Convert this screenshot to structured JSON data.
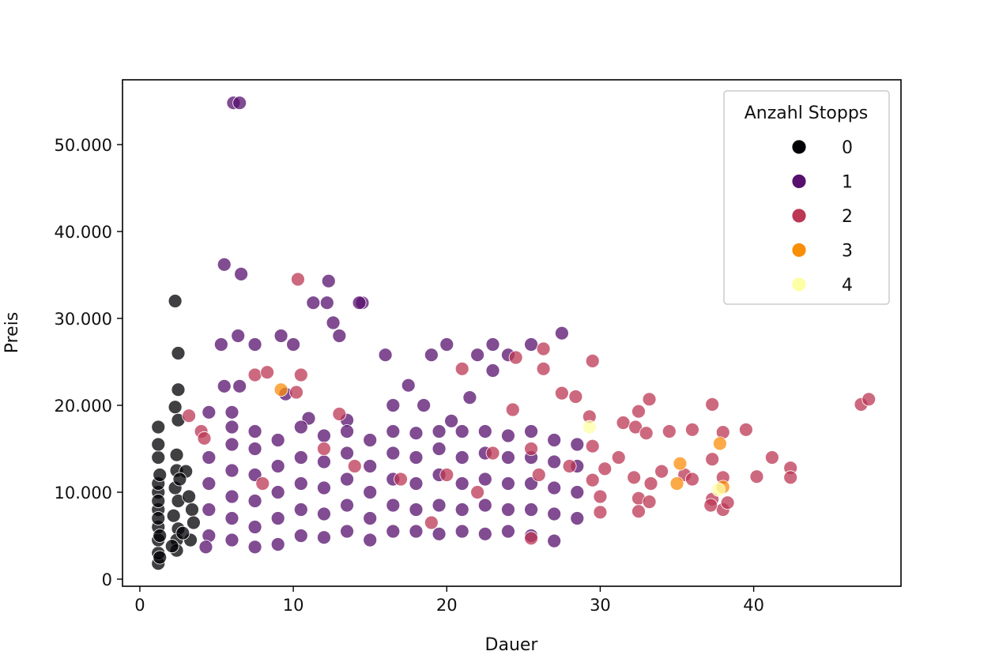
{
  "chart_data": {
    "type": "scatter",
    "title": "",
    "xlabel": "Dauer",
    "ylabel": "Preis",
    "xlim": [
      -1.13,
      49.6
    ],
    "ylim": [
      -818,
      57454
    ],
    "xticks": [
      {
        "value": 0,
        "label": "0"
      },
      {
        "value": 10,
        "label": "10"
      },
      {
        "value": 20,
        "label": "20"
      },
      {
        "value": 30,
        "label": "30"
      },
      {
        "value": 40,
        "label": "40"
      }
    ],
    "yticks": [
      {
        "value": 0,
        "label": "0"
      },
      {
        "value": 10000,
        "label": "10.000"
      },
      {
        "value": 20000,
        "label": "20.000"
      },
      {
        "value": 30000,
        "label": "30.000"
      },
      {
        "value": 40000,
        "label": "40.000"
      },
      {
        "value": 50000,
        "label": "50.000"
      }
    ],
    "grid": false,
    "legend": {
      "title": "Anzahl Stopps",
      "placement": "top-right",
      "entries": [
        {
          "label": "0",
          "color": "#000004"
        },
        {
          "label": "1",
          "color": "#57106e"
        },
        {
          "label": "2",
          "color": "#bc3754"
        },
        {
          "label": "3",
          "color": "#f98e09"
        },
        {
          "label": "4",
          "color": "#fcffa4"
        }
      ]
    },
    "point_format": [
      "Dauer",
      "Preis",
      "Anzahl Stopps"
    ],
    "points": [
      [
        1.2,
        1800,
        0
      ],
      [
        1.2,
        3000,
        0
      ],
      [
        1.2,
        4500,
        0
      ],
      [
        1.2,
        6000,
        0
      ],
      [
        1.2,
        8000,
        0
      ],
      [
        1.2,
        10000,
        0
      ],
      [
        1.2,
        11000,
        0
      ],
      [
        1.2,
        14000,
        0
      ],
      [
        1.2,
        15500,
        0
      ],
      [
        1.2,
        17500,
        0
      ],
      [
        1.3,
        12000,
        0
      ],
      [
        1.3,
        5000,
        0
      ],
      [
        1.3,
        2500,
        0
      ],
      [
        1.2,
        7000,
        0
      ],
      [
        1.2,
        9000,
        0
      ],
      [
        2.3,
        32000,
        0
      ],
      [
        2.5,
        26000,
        0
      ],
      [
        2.5,
        21800,
        0
      ],
      [
        2.3,
        19800,
        0
      ],
      [
        2.5,
        18300,
        0
      ],
      [
        2.4,
        14300,
        0
      ],
      [
        2.4,
        12500,
        0
      ],
      [
        2.3,
        10500,
        0
      ],
      [
        2.5,
        9000,
        0
      ],
      [
        2.2,
        7300,
        0
      ],
      [
        2.5,
        5800,
        0
      ],
      [
        2.4,
        4500,
        0
      ],
      [
        2.4,
        3300,
        0
      ],
      [
        3.2,
        9500,
        0
      ],
      [
        3.4,
        8000,
        0
      ],
      [
        3.5,
        6500,
        0
      ],
      [
        3.3,
        4500,
        0
      ],
      [
        2.8,
        5300,
        0
      ],
      [
        3.0,
        12400,
        0
      ],
      [
        2.1,
        3800,
        0
      ],
      [
        2.6,
        11500,
        0
      ],
      [
        6.1,
        54800,
        1
      ],
      [
        6.5,
        54800,
        1
      ],
      [
        5.5,
        36200,
        1
      ],
      [
        6.6,
        35100,
        1
      ],
      [
        12.3,
        34300,
        1
      ],
      [
        12.6,
        29500,
        1
      ],
      [
        14.5,
        31800,
        1
      ],
      [
        11.3,
        31800,
        1
      ],
      [
        12.2,
        31800,
        1
      ],
      [
        14.3,
        31800,
        1
      ],
      [
        6.4,
        28000,
        1
      ],
      [
        9.2,
        28000,
        1
      ],
      [
        13,
        28000,
        1
      ],
      [
        27.5,
        28300,
        1
      ],
      [
        5.3,
        27000,
        1
      ],
      [
        7.5,
        27000,
        1
      ],
      [
        10,
        27000,
        1
      ],
      [
        20,
        27000,
        1
      ],
      [
        23,
        27000,
        1
      ],
      [
        22,
        25800,
        1
      ],
      [
        16,
        25800,
        1
      ],
      [
        19,
        25800,
        1
      ],
      [
        24,
        25800,
        1
      ],
      [
        25.5,
        27000,
        1
      ],
      [
        9.5,
        21300,
        1
      ],
      [
        5.5,
        22200,
        1
      ],
      [
        6.5,
        22200,
        1
      ],
      [
        17.5,
        22300,
        1
      ],
      [
        21.5,
        20900,
        1
      ],
      [
        23,
        24000,
        1
      ],
      [
        16.5,
        20000,
        1
      ],
      [
        18.5,
        20000,
        1
      ],
      [
        4.5,
        19200,
        1
      ],
      [
        6,
        19200,
        1
      ],
      [
        11,
        18500,
        1
      ],
      [
        13.5,
        18300,
        1
      ],
      [
        20.3,
        18200,
        1
      ],
      [
        4.5,
        5000,
        1
      ],
      [
        4.5,
        8000,
        1
      ],
      [
        4.5,
        11000,
        1
      ],
      [
        4.5,
        14000,
        1
      ],
      [
        4.3,
        3700,
        1
      ],
      [
        6,
        4500,
        1
      ],
      [
        6,
        7000,
        1
      ],
      [
        6,
        9500,
        1
      ],
      [
        6,
        12500,
        1
      ],
      [
        6,
        15500,
        1
      ],
      [
        6,
        17500,
        1
      ],
      [
        7.5,
        3700,
        1
      ],
      [
        7.5,
        6000,
        1
      ],
      [
        7.5,
        9000,
        1
      ],
      [
        7.5,
        12000,
        1
      ],
      [
        7.5,
        15000,
        1
      ],
      [
        7.5,
        17000,
        1
      ],
      [
        9,
        4000,
        1
      ],
      [
        9,
        7000,
        1
      ],
      [
        9,
        10000,
        1
      ],
      [
        9,
        13000,
        1
      ],
      [
        9,
        16000,
        1
      ],
      [
        10.5,
        5000,
        1
      ],
      [
        10.5,
        8000,
        1
      ],
      [
        10.5,
        11000,
        1
      ],
      [
        10.5,
        14000,
        1
      ],
      [
        10.5,
        17500,
        1
      ],
      [
        12,
        4800,
        1
      ],
      [
        12,
        7500,
        1
      ],
      [
        12,
        10500,
        1
      ],
      [
        12,
        13500,
        1
      ],
      [
        12,
        16500,
        1
      ],
      [
        13.5,
        5500,
        1
      ],
      [
        13.5,
        8500,
        1
      ],
      [
        13.5,
        11500,
        1
      ],
      [
        13.5,
        14500,
        1
      ],
      [
        13.5,
        17000,
        1
      ],
      [
        15,
        4500,
        1
      ],
      [
        15,
        7000,
        1
      ],
      [
        15,
        10000,
        1
      ],
      [
        15,
        13000,
        1
      ],
      [
        15,
        16000,
        1
      ],
      [
        16.5,
        5500,
        1
      ],
      [
        16.5,
        8500,
        1
      ],
      [
        16.5,
        11500,
        1
      ],
      [
        16.5,
        14500,
        1
      ],
      [
        16.5,
        17000,
        1
      ],
      [
        18,
        5500,
        1
      ],
      [
        18,
        8000,
        1
      ],
      [
        18,
        11000,
        1
      ],
      [
        18,
        14000,
        1
      ],
      [
        18,
        16800,
        1
      ],
      [
        19.5,
        5200,
        1
      ],
      [
        19.5,
        8500,
        1
      ],
      [
        19.5,
        12000,
        1
      ],
      [
        19.5,
        15000,
        1
      ],
      [
        19.5,
        17000,
        1
      ],
      [
        21,
        5500,
        1
      ],
      [
        21,
        8000,
        1
      ],
      [
        21,
        11000,
        1
      ],
      [
        21,
        14000,
        1
      ],
      [
        21,
        17000,
        1
      ],
      [
        22.5,
        5200,
        1
      ],
      [
        22.5,
        8500,
        1
      ],
      [
        22.5,
        11500,
        1
      ],
      [
        22.5,
        14500,
        1
      ],
      [
        22.5,
        17000,
        1
      ],
      [
        24,
        5500,
        1
      ],
      [
        24,
        8000,
        1
      ],
      [
        24,
        11000,
        1
      ],
      [
        24,
        14000,
        1
      ],
      [
        24,
        16500,
        1
      ],
      [
        25.5,
        5000,
        1
      ],
      [
        25.5,
        8000,
        1
      ],
      [
        25.5,
        11000,
        1
      ],
      [
        25.5,
        14000,
        1
      ],
      [
        25.5,
        17000,
        1
      ],
      [
        27,
        4400,
        1
      ],
      [
        27,
        7500,
        1
      ],
      [
        27,
        10500,
        1
      ],
      [
        27,
        13500,
        1
      ],
      [
        27,
        16000,
        1
      ],
      [
        28.5,
        7000,
        1
      ],
      [
        28.5,
        10000,
        1
      ],
      [
        28.5,
        13000,
        1
      ],
      [
        28.5,
        15500,
        1
      ],
      [
        10.3,
        34500,
        2
      ],
      [
        10.5,
        23500,
        2
      ],
      [
        7.5,
        23500,
        2
      ],
      [
        8.3,
        23800,
        2
      ],
      [
        10.2,
        21500,
        2
      ],
      [
        24.5,
        25500,
        2
      ],
      [
        26.3,
        26500,
        2
      ],
      [
        26.3,
        24200,
        2
      ],
      [
        29.5,
        25100,
        2
      ],
      [
        27.5,
        21400,
        2
      ],
      [
        28.4,
        21000,
        2
      ],
      [
        21,
        24200,
        2
      ],
      [
        33.2,
        20700,
        2
      ],
      [
        37.3,
        20100,
        2
      ],
      [
        47,
        20100,
        2
      ],
      [
        47.5,
        20700,
        2
      ],
      [
        31.5,
        18000,
        2
      ],
      [
        32.3,
        17500,
        2
      ],
      [
        33,
        16800,
        2
      ],
      [
        34.5,
        17000,
        2
      ],
      [
        36,
        17200,
        2
      ],
      [
        39.5,
        17200,
        2
      ],
      [
        38,
        16900,
        2
      ],
      [
        32.5,
        19300,
        2
      ],
      [
        41.2,
        14000,
        2
      ],
      [
        37.3,
        13800,
        2
      ],
      [
        35.5,
        12000,
        2
      ],
      [
        36,
        11500,
        2
      ],
      [
        38,
        11700,
        2
      ],
      [
        40.2,
        11800,
        2
      ],
      [
        42.4,
        12800,
        2
      ],
      [
        42.4,
        11700,
        2
      ],
      [
        32.2,
        11700,
        2
      ],
      [
        33.3,
        11000,
        2
      ],
      [
        34,
        12400,
        2
      ],
      [
        37.3,
        9200,
        2
      ],
      [
        38,
        8000,
        2
      ],
      [
        38.3,
        8800,
        2
      ],
      [
        37.2,
        8500,
        2
      ],
      [
        32.5,
        9300,
        2
      ],
      [
        33.2,
        8900,
        2
      ],
      [
        32.5,
        7800,
        2
      ],
      [
        30,
        7700,
        2
      ],
      [
        30,
        9500,
        2
      ],
      [
        29.5,
        11400,
        2
      ],
      [
        30.3,
        12700,
        2
      ],
      [
        31.2,
        14000,
        2
      ],
      [
        29.5,
        15300,
        2
      ],
      [
        29.3,
        18700,
        2
      ],
      [
        24.3,
        19500,
        2
      ],
      [
        25.5,
        15000,
        2
      ],
      [
        23,
        14500,
        2
      ],
      [
        20,
        12000,
        2
      ],
      [
        17,
        11500,
        2
      ],
      [
        14,
        13000,
        2
      ],
      [
        12,
        15000,
        2
      ],
      [
        8,
        11000,
        2
      ],
      [
        19,
        6500,
        2
      ],
      [
        22,
        10000,
        2
      ],
      [
        26,
        12000,
        2
      ],
      [
        28,
        13000,
        2
      ],
      [
        4,
        17000,
        2
      ],
      [
        4.2,
        16200,
        2
      ],
      [
        3.2,
        18800,
        2
      ],
      [
        13,
        19000,
        2
      ],
      [
        25.5,
        4700,
        2
      ],
      [
        9.2,
        21800,
        3
      ],
      [
        35.2,
        13300,
        3
      ],
      [
        35,
        11000,
        3
      ],
      [
        37.8,
        15600,
        3
      ],
      [
        38,
        10600,
        3
      ],
      [
        29.3,
        17500,
        4
      ],
      [
        37.7,
        10300,
        4
      ]
    ]
  }
}
